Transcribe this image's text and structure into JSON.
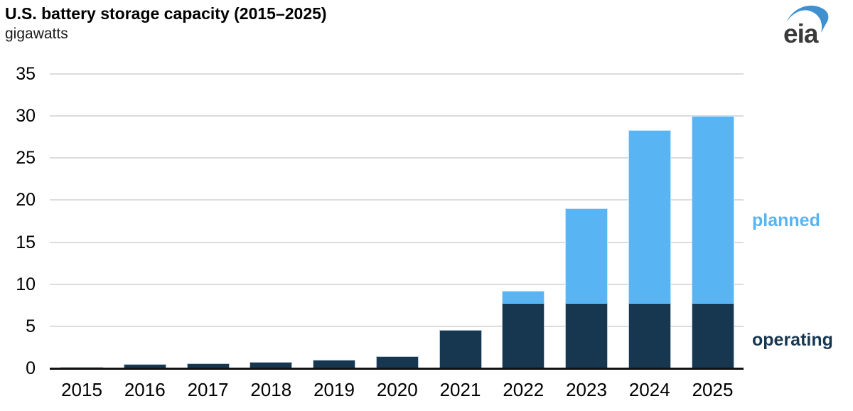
{
  "header": {
    "title": "U.S. battery storage capacity (2015–2025)",
    "units_label": "gigawatts"
  },
  "logo": {
    "text": "eia",
    "text_color": "#3b3b3b",
    "swoosh_color": "#3e90cf"
  },
  "chart_data": {
    "type": "bar",
    "stacked": true,
    "title": "U.S. battery storage capacity (2015–2025)",
    "ylabel": "gigawatts",
    "xlabel": "",
    "categories": [
      "2015",
      "2016",
      "2017",
      "2018",
      "2019",
      "2020",
      "2021",
      "2022",
      "2023",
      "2024",
      "2025"
    ],
    "series": [
      {
        "name": "operating",
        "color": "#17364f",
        "edge_color": "#b9c9d6",
        "values": [
          0.2,
          0.5,
          0.6,
          0.8,
          1.0,
          1.4,
          4.6,
          7.8,
          7.8,
          7.8,
          7.8
        ]
      },
      {
        "name": "planned",
        "color": "#58b4f2",
        "edge_color": "#c7e5fb",
        "values": [
          0,
          0,
          0,
          0,
          0,
          0,
          0,
          1.4,
          11.2,
          20.5,
          22.2
        ]
      }
    ],
    "totals": [
      0.2,
      0.5,
      0.6,
      0.8,
      1.0,
      1.4,
      4.6,
      9.2,
      19.0,
      28.3,
      30.0
    ],
    "ylim": [
      0,
      35
    ],
    "yticks": [
      0,
      5,
      10,
      15,
      20,
      25,
      30,
      35
    ],
    "grid": "horizontal",
    "legend_position": "right-of-plot",
    "annotations": [
      {
        "text": "planned",
        "color": "#58b4f2"
      },
      {
        "text": "operating",
        "color": "#17364f"
      }
    ]
  },
  "colors": {
    "background": "#ffffff",
    "gridline": "#dcdcdc",
    "axis": "#111111",
    "text": "#000000"
  }
}
